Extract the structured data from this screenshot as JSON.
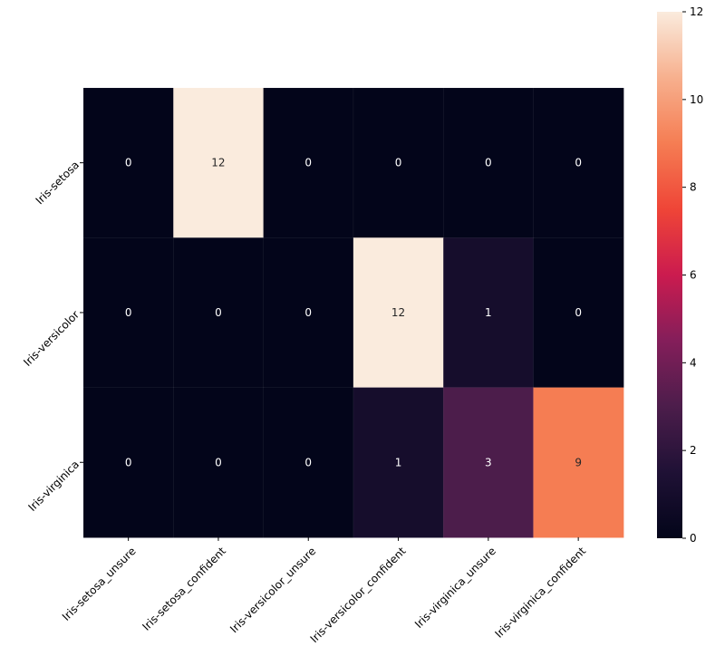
{
  "chart_data": {
    "type": "heatmap",
    "row_labels": [
      "Iris-setosa",
      "Iris-versicolor",
      "Iris-virginica"
    ],
    "col_labels": [
      "Iris-setosa_unsure",
      "Iris-setosa_confident",
      "Iris-versicolor_unsure",
      "Iris-versicolor_confident",
      "Iris-virginica_unsure",
      "Iris-virginica_confident"
    ],
    "values": [
      [
        0,
        12,
        0,
        0,
        0,
        0
      ],
      [
        0,
        0,
        0,
        12,
        1,
        0
      ],
      [
        0,
        0,
        0,
        1,
        3,
        9
      ]
    ],
    "colorbar": {
      "min": 0,
      "max": 12,
      "ticks": [
        0,
        2,
        4,
        6,
        8,
        10,
        12
      ],
      "colormap": "rocket"
    },
    "annotations": true,
    "title": "",
    "xlabel": "",
    "ylabel": ""
  }
}
